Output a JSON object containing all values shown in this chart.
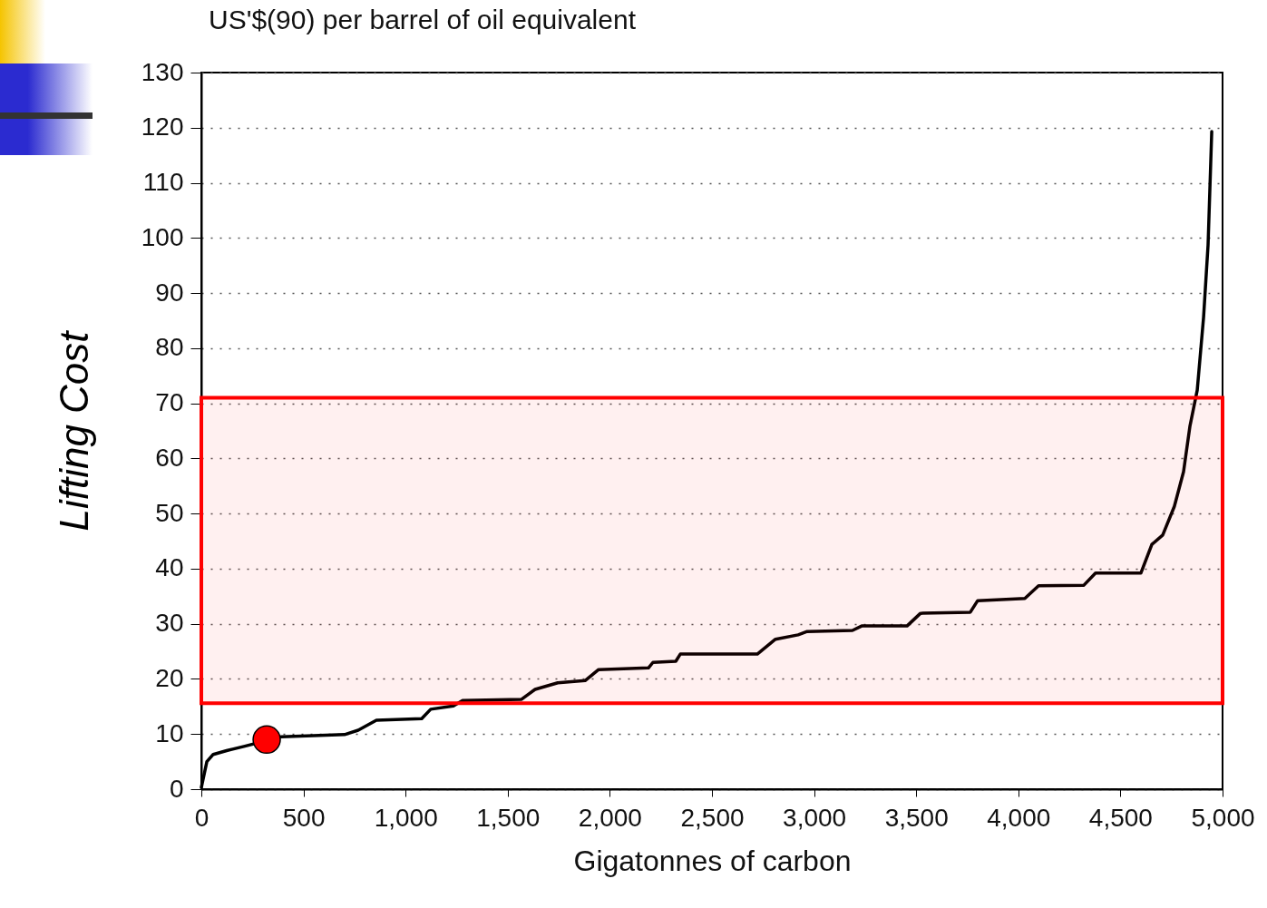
{
  "chart_data": {
    "type": "line",
    "title": "US'$(90) per barrel of oil equivalent",
    "xlabel": "Gigatonnes of carbon",
    "ylabel": "Lifting Cost",
    "xlim": [
      0,
      5000
    ],
    "ylim": [
      0,
      130
    ],
    "xticks": [
      0,
      500,
      {
        "value": 1000,
        "label": "1,000"
      },
      {
        "value": 1500,
        "label": "1,500"
      },
      {
        "value": 2000,
        "label": "2,000"
      },
      {
        "value": 2500,
        "label": "2,500"
      },
      {
        "value": 3000,
        "label": "3,000"
      },
      {
        "value": 3500,
        "label": "3,500"
      },
      {
        "value": 4000,
        "label": "4,000"
      },
      {
        "value": 4500,
        "label": "4,500"
      },
      {
        "value": 5000,
        "label": "5,000"
      }
    ],
    "yticks": [
      0,
      10,
      20,
      30,
      40,
      50,
      60,
      70,
      80,
      90,
      100,
      110,
      120,
      130
    ],
    "grid": "y",
    "series": [
      {
        "color": "#000000",
        "x": [
          0,
          27,
          58,
          124,
          213,
          391,
          701,
          768,
          857,
          1079,
          1123,
          1234,
          1279,
          1568,
          1634,
          1745,
          1879,
          1945,
          2189,
          2211,
          2323,
          2345,
          2722,
          2811,
          2922,
          2966,
          3188,
          3233,
          3455,
          3521,
          3765,
          3801,
          4032,
          4099,
          4321,
          4378,
          4600,
          4654,
          4707,
          4764,
          4809,
          4840,
          4876,
          4907,
          4929,
          4947
        ],
        "values": [
          0.3,
          5,
          6.3,
          7,
          7.8,
          9.5,
          9.9,
          10.7,
          12.5,
          12.8,
          14.5,
          15.1,
          16.1,
          16.3,
          18.1,
          19.3,
          19.7,
          21.7,
          22,
          23,
          23.2,
          24.5,
          24.5,
          27.2,
          28,
          28.6,
          28.8,
          29.6,
          29.6,
          31.9,
          32.1,
          34.2,
          34.6,
          36.9,
          37,
          39.2,
          39.2,
          44.4,
          46.1,
          51.3,
          57.6,
          65.8,
          72.4,
          85.6,
          98.7,
          119.3
        ]
      },
      {
        "type": "scatter",
        "color": "#ff0000",
        "marker": "circle",
        "x": [
          320
        ],
        "values": [
          9
        ]
      }
    ],
    "bands": [
      {
        "axis": "y",
        "from": 15.6,
        "to": 71,
        "color": "#ff0000"
      }
    ]
  }
}
